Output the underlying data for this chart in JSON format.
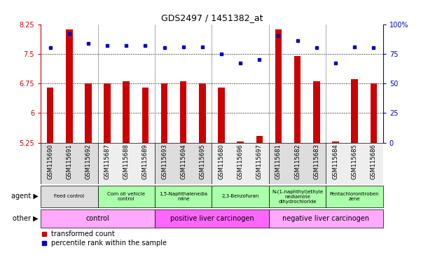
{
  "title": "GDS2497 / 1451382_at",
  "samples": [
    "GSM115690",
    "GSM115691",
    "GSM115692",
    "GSM115687",
    "GSM115688",
    "GSM115689",
    "GSM115693",
    "GSM115694",
    "GSM115695",
    "GSM115680",
    "GSM115696",
    "GSM115697",
    "GSM115681",
    "GSM115682",
    "GSM115683",
    "GSM115684",
    "GSM115685",
    "GSM115686"
  ],
  "transformed_count": [
    6.65,
    8.12,
    6.75,
    6.75,
    6.8,
    6.65,
    6.75,
    6.8,
    6.75,
    6.65,
    5.28,
    5.42,
    8.12,
    7.45,
    6.8,
    5.28,
    6.85,
    6.75
  ],
  "percentile_rank": [
    80,
    92,
    84,
    82,
    82,
    82,
    80,
    81,
    81,
    75,
    67,
    70,
    90,
    86,
    80,
    67,
    81,
    80
  ],
  "ylim_left": [
    5.25,
    8.25
  ],
  "ylim_right": [
    0,
    100
  ],
  "yticks_left": [
    5.25,
    6.0,
    6.75,
    7.5,
    8.25
  ],
  "ytick_labels_left": [
    "5.25",
    "6",
    "6.75",
    "7.5",
    "8.25"
  ],
  "yticks_right": [
    0,
    25,
    50,
    75,
    100
  ],
  "ytick_labels_right": [
    "0",
    "25",
    "50",
    "75",
    "100%"
  ],
  "bar_color": "#cc0000",
  "dot_color": "#0000cc",
  "agent_groups": [
    {
      "label": "Feed control",
      "start": 0,
      "end": 3,
      "color": "#dddddd"
    },
    {
      "label": "Corn oil vehicle\ncontrol",
      "start": 3,
      "end": 6,
      "color": "#aaffaa"
    },
    {
      "label": "1,5-Naphthalenedia\nmine",
      "start": 6,
      "end": 9,
      "color": "#aaffaa"
    },
    {
      "label": "2,3-Benzofuran",
      "start": 9,
      "end": 12,
      "color": "#aaffaa"
    },
    {
      "label": "N-(1-naphthyl)ethyle\nnediamine\ndihydrochloride",
      "start": 12,
      "end": 15,
      "color": "#aaffaa"
    },
    {
      "label": "Pentachloronitroben\nzene",
      "start": 15,
      "end": 18,
      "color": "#aaffaa"
    }
  ],
  "other_groups": [
    {
      "label": "control",
      "start": 0,
      "end": 6,
      "color": "#ffaaff"
    },
    {
      "label": "positive liver carcinogen",
      "start": 6,
      "end": 12,
      "color": "#ff66ff"
    },
    {
      "label": "negative liver carcinogen",
      "start": 12,
      "end": 18,
      "color": "#ffaaff"
    }
  ],
  "xtick_bg_colors": [
    "#eeeeee",
    "#dddddd"
  ],
  "hline_values": [
    6.0,
    6.75,
    7.5
  ],
  "legend_items": [
    {
      "label": "transformed count",
      "color": "#cc0000"
    },
    {
      "label": "percentile rank within the sample",
      "color": "#0000cc"
    }
  ],
  "group_boundaries": [
    3,
    6,
    9,
    12,
    15
  ],
  "n_groups": 6,
  "group_sizes": [
    3,
    3,
    3,
    3,
    3,
    3
  ]
}
